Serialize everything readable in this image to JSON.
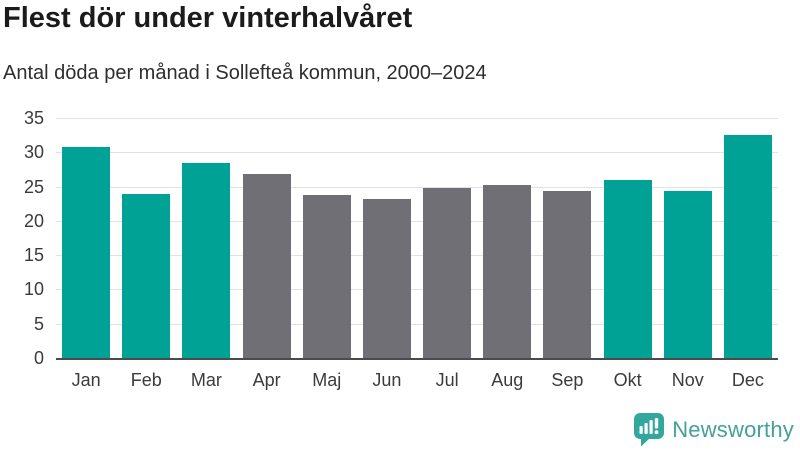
{
  "header": {
    "title": "Flest dör under vinterhalvåret",
    "subtitle": "Antal döda per månad i Sollefteå kommun, 2000–2024"
  },
  "chart_data": {
    "type": "bar",
    "title": "Flest dör under vinterhalvåret",
    "subtitle": "Antal döda per månad i Sollefteå kommun, 2000–2024",
    "categories": [
      "Jan",
      "Feb",
      "Mar",
      "Apr",
      "Maj",
      "Jun",
      "Jul",
      "Aug",
      "Sep",
      "Okt",
      "Nov",
      "Dec"
    ],
    "values": [
      30.8,
      23.9,
      28.4,
      26.8,
      23.8,
      23.2,
      24.8,
      25.2,
      24.4,
      25.9,
      24.3,
      32.5
    ],
    "bar_colors": [
      "#00a296",
      "#00a296",
      "#00a296",
      "#716f76",
      "#716f76",
      "#716f76",
      "#716f76",
      "#716f76",
      "#716f76",
      "#00a296",
      "#00a296",
      "#00a296"
    ],
    "highlight_color": "#00a296",
    "muted_color": "#716f76",
    "highlighted_months": [
      "Jan",
      "Feb",
      "Mar",
      "Okt",
      "Nov",
      "Dec"
    ],
    "xlabel": "",
    "ylabel": "",
    "ylim": [
      0,
      35
    ],
    "y_ticks": [
      0,
      5,
      10,
      15,
      20,
      25,
      30,
      35
    ],
    "grid": true,
    "legend": "none"
  },
  "branding": {
    "logo_text": "Newsworthy",
    "logo_icon": "newsworthy-speech-bubble-chart-icon",
    "logo_text_color": "#43a09b",
    "logo_icon_color": "#33a79d"
  },
  "colors": {
    "background": "#ffffff",
    "gridline": "#e2e2e2",
    "axis_line": "#4b4b4b",
    "title_text": "#1b1b1b",
    "subtitle_text": "#2e2e2e",
    "tick_text": "#3b3b3b"
  }
}
